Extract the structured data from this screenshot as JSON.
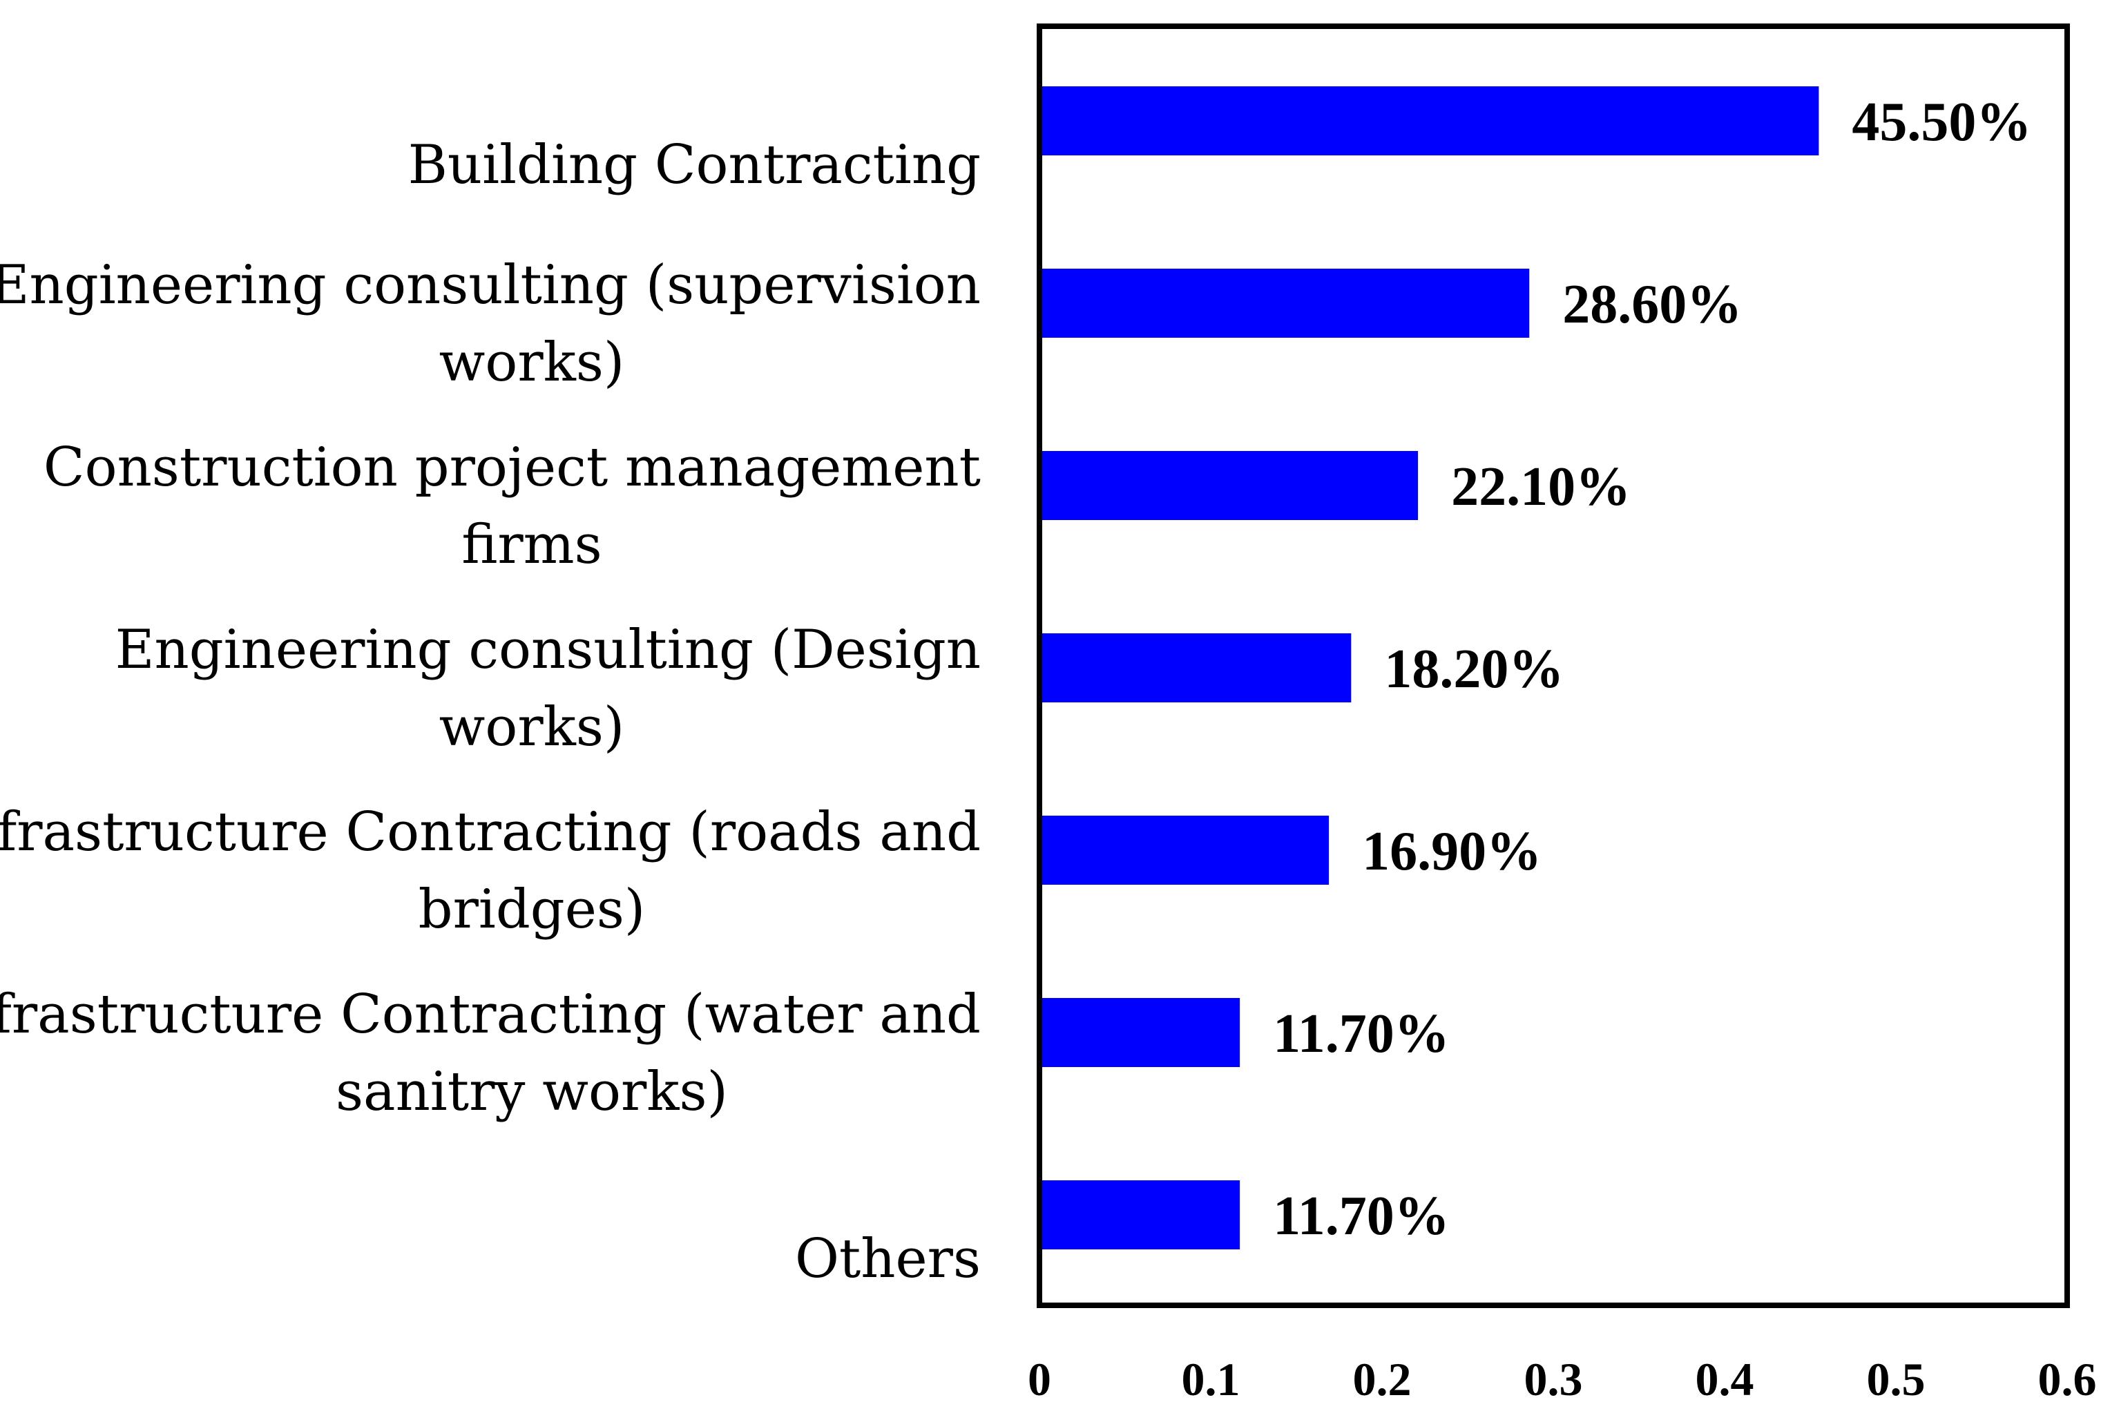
{
  "chart_data": {
    "type": "bar",
    "orientation": "horizontal",
    "categories": [
      [
        "Building Contracting"
      ],
      [
        "Engineering consulting (supervision",
        "works)"
      ],
      [
        "Construction project management",
        "firms"
      ],
      [
        "Engineering consulting (Design",
        "works)"
      ],
      [
        "Infrastructure Contracting (roads and",
        "bridges)"
      ],
      [
        "Infrastructure Contracting (water and",
        "sanitry works)"
      ],
      [
        "Others"
      ]
    ],
    "values": [
      0.455,
      0.286,
      0.221,
      0.182,
      0.169,
      0.117,
      0.117
    ],
    "value_labels": [
      "45.50%",
      "28.60%",
      "22.10%",
      "18.20%",
      "16.90%",
      "11.70%",
      "11.70%"
    ],
    "x_ticks": [
      "0",
      "0.1",
      "0.2",
      "0.3",
      "0.4",
      "0.5",
      "0.6"
    ],
    "xlim": [
      0,
      0.6
    ],
    "bar_color": "#0000ff",
    "title": "",
    "xlabel": "",
    "ylabel": "",
    "grid": false
  }
}
